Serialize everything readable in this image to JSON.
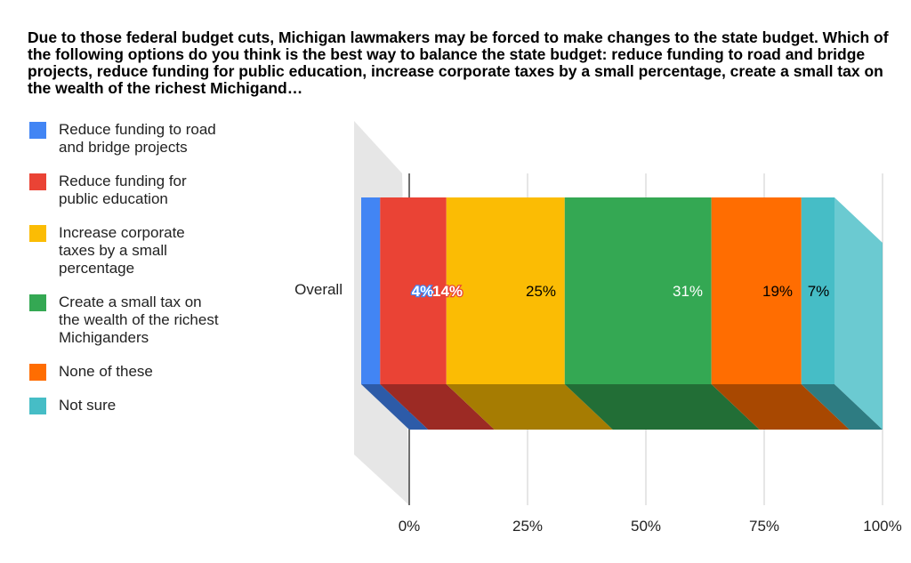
{
  "chart_data": {
    "type": "bar",
    "orientation": "horizontal",
    "stacked": true,
    "percent_stacked": true,
    "render_3d": true,
    "title": "Due to those federal budget cuts, Michigan lawmakers may be forced to make changes to the state budget. Which of the following options do you think is the best way to balance the state budget: reduce funding to road and bridge projects, reduce funding for public education, increase corporate taxes by a small percentage, create a small tax on the wealth of the richest Michigand…",
    "categories": [
      "Overall"
    ],
    "series": [
      {
        "name": "Reduce funding to road and bridge projects",
        "values": [
          4
        ],
        "label": "4%",
        "color": "#4285f4",
        "shade": "#2d5ba8",
        "label_color": "#ffffff",
        "label_outline": "#4285f4",
        "legend_lines": [
          "Reduce funding to road",
          "and bridge projects"
        ]
      },
      {
        "name": "Reduce funding for public education",
        "values": [
          14
        ],
        "label": "14%",
        "color": "#ea4335",
        "shade": "#9c2a24",
        "label_color": "#ffffff",
        "label_outline": "#ea4335",
        "legend_lines": [
          "Reduce funding for",
          "public education"
        ]
      },
      {
        "name": "Increase corporate taxes by a small percentage",
        "values": [
          25
        ],
        "label": "25%",
        "color": "#fbbc04",
        "shade": "#a67c02",
        "label_color": "#000000",
        "legend_lines": [
          "Increase corporate",
          "taxes by a small",
          "percentage"
        ]
      },
      {
        "name": "Create a small tax on the wealth of the richest Michiganders",
        "values": [
          31
        ],
        "label": "31%",
        "color": "#34a853",
        "shade": "#226e36",
        "label_color": "#ffffff",
        "legend_lines": [
          "Create a small tax on",
          "the wealth of the richest",
          "Michiganders"
        ]
      },
      {
        "name": "None of these",
        "values": [
          19
        ],
        "label": "19%",
        "color": "#ff6d01",
        "shade": "#a84801",
        "label_color": "#000000",
        "legend_lines": [
          "None of these"
        ]
      },
      {
        "name": "Not sure",
        "values": [
          7
        ],
        "label": "7%",
        "color": "#46bdc6",
        "shade": "#2e7c82",
        "label_color": "#000000",
        "legend_lines": [
          "Not sure"
        ]
      }
    ],
    "xlim": [
      0,
      100
    ],
    "x_ticks": [
      0,
      25,
      50,
      75,
      100
    ],
    "x_tick_labels": [
      "0%",
      "25%",
      "50%",
      "75%",
      "100%"
    ],
    "grid": true,
    "legend_position": "left"
  }
}
